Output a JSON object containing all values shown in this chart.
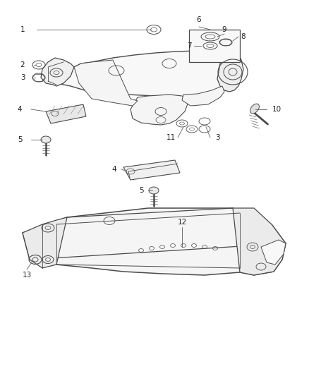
{
  "bg_color": "#ffffff",
  "line_color": "#4a4a4a",
  "label_color": "#222222",
  "leader_color": "#666666",
  "fig_width": 4.38,
  "fig_height": 5.33,
  "dpi": 100
}
